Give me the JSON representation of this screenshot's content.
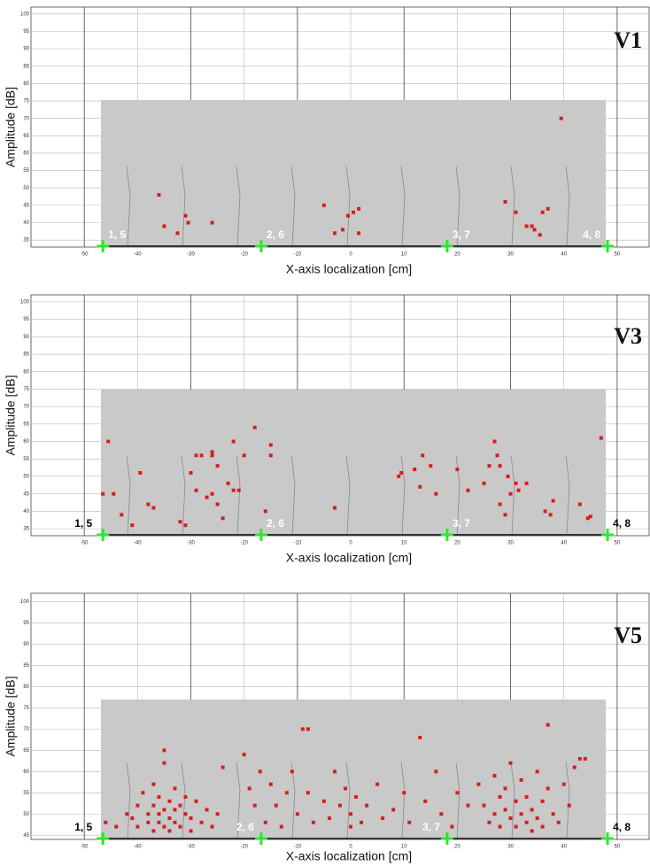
{
  "chart_data": [
    {
      "type": "scatter",
      "label": "V1",
      "xlabel": "X-axis localization [cm]",
      "ylabel": "Amplitude [dB]",
      "xlim": [
        -60,
        56
      ],
      "ylim": [
        33,
        102
      ],
      "xticks": [
        -50,
        -40,
        -30,
        -20,
        -10,
        0,
        10,
        20,
        30,
        40,
        50
      ],
      "yticks": [
        100,
        95,
        90,
        85,
        80,
        75,
        70,
        65,
        60,
        55,
        50,
        45,
        40,
        35
      ],
      "grid": true,
      "color": "#d41f1a",
      "x": [
        -36,
        -35,
        -32.5,
        -31,
        -30.5,
        -26,
        -5,
        -3,
        -1.5,
        -0.5,
        0.5,
        1.5,
        1.5,
        29,
        31,
        33,
        34,
        34.5,
        35.5,
        36,
        37,
        39.5
      ],
      "y": [
        48,
        39,
        37,
        42,
        40,
        40,
        45,
        37,
        38,
        42,
        43,
        44,
        37,
        46,
        43,
        39,
        39,
        38,
        36.5,
        43,
        44,
        70
      ],
      "sensors": {
        "x": [
          -46.5,
          -16.8,
          18.1,
          48.2
        ],
        "labels": [
          "1, 5",
          "2, 6",
          "3, 7",
          "4, 8"
        ],
        "color": "#2ee62e"
      }
    },
    {
      "type": "scatter",
      "label": "V3",
      "xlabel": "X-axis localization  [cm]",
      "ylabel": "Amplitude [dB]",
      "xlim": [
        -60,
        56
      ],
      "ylim": [
        33,
        102
      ],
      "xticks": [
        -50,
        -40,
        -30,
        -20,
        -10,
        0,
        10,
        20,
        30,
        40,
        50
      ],
      "yticks": [
        100,
        95,
        90,
        85,
        80,
        75,
        70,
        65,
        60,
        55,
        50,
        45,
        40,
        35
      ],
      "grid": true,
      "color": "#d41f1a",
      "x": [
        -45.5,
        -46.5,
        -44.5,
        -43,
        -41,
        -39.5,
        -38,
        -37,
        -32,
        -31,
        -30,
        -29,
        -28,
        -29,
        -27,
        -26,
        -26,
        -25,
        -26,
        -25,
        -24,
        -23,
        -22,
        -21,
        -22,
        -20,
        -18,
        -16,
        -15,
        -15,
        -3,
        9,
        9.5,
        12,
        13,
        13.5,
        15,
        16,
        20,
        22,
        25,
        26,
        27,
        27.5,
        28,
        28,
        29,
        29.5,
        30,
        31,
        31.5,
        33,
        36.5,
        37.5,
        38,
        43,
        44.5,
        45,
        47
      ],
      "y": [
        60,
        45,
        45,
        39,
        36,
        51,
        42,
        41,
        37,
        36,
        51,
        56,
        56,
        46,
        44,
        57,
        56,
        53,
        45,
        42,
        38,
        48,
        46,
        46,
        60,
        56,
        64,
        40,
        59,
        56,
        41,
        50,
        51,
        52,
        47,
        56,
        53,
        45,
        52,
        46,
        48,
        53,
        60,
        56,
        53,
        42,
        39,
        50,
        45,
        48,
        46,
        48,
        40,
        39,
        43,
        42,
        38,
        38.5,
        61
      ],
      "sensors": {
        "x": [
          -46.5,
          -16.8,
          18.1,
          48.2
        ],
        "labels": [
          "1, 5",
          "2, 6",
          "3, 7",
          "4, 8"
        ],
        "color": "#2ee62e"
      }
    },
    {
      "type": "scatter",
      "label": "V5",
      "xlabel": "X-axis localization  [cm]",
      "ylabel": "Amplitude [dB]",
      "xlim": [
        -60,
        56
      ],
      "ylim": [
        44,
        102
      ],
      "xticks": [
        -50,
        -40,
        -30,
        -20,
        -10,
        0,
        10,
        20,
        30,
        40,
        50
      ],
      "yticks": [
        100,
        95,
        90,
        85,
        80,
        75,
        70,
        65,
        60,
        55,
        50,
        45
      ],
      "grid": true,
      "color": "#d41f1a",
      "x": [
        -46,
        -44,
        -42,
        -41,
        -40,
        -40,
        -39,
        -38,
        -38,
        -37,
        -37,
        -37,
        -36,
        -36,
        -36,
        -35,
        -35,
        -35,
        -34,
        -34,
        -34,
        -33,
        -33,
        -33,
        -32,
        -32,
        -31,
        -31,
        -30,
        -30,
        -29,
        -28,
        -27,
        -26,
        -25,
        -24,
        -35,
        -20,
        -19,
        -18,
        -17,
        -16,
        -15,
        -14,
        -13,
        -12,
        -11,
        -10,
        -9,
        -8,
        -8,
        -7,
        -5,
        -4,
        -3,
        -2,
        -1,
        0,
        0,
        1,
        2,
        3,
        5,
        6,
        8,
        10,
        11,
        13,
        14,
        16,
        17,
        19,
        20,
        22,
        24,
        25,
        26,
        27,
        27,
        28,
        28,
        29,
        29,
        30,
        30,
        31,
        31,
        32,
        32,
        33,
        33,
        34,
        34,
        35,
        35,
        36,
        36,
        37,
        37,
        38,
        39,
        40,
        41,
        42,
        43,
        44
      ],
      "y": [
        48,
        47,
        50,
        49,
        52,
        47,
        55,
        50,
        48,
        57,
        52,
        46,
        54,
        50,
        48,
        62,
        51,
        47,
        53,
        49,
        46,
        56,
        51,
        48,
        52,
        47,
        54,
        50,
        49,
        46,
        53,
        48,
        51,
        47,
        50,
        61,
        65,
        64,
        56,
        52,
        60,
        48,
        57,
        52,
        47,
        55,
        60,
        50,
        70,
        70,
        55,
        48,
        53,
        49,
        60,
        52,
        56,
        50,
        47,
        54,
        48,
        52,
        57,
        49,
        51,
        55,
        48,
        68,
        53,
        60,
        50,
        47,
        55,
        52,
        57,
        52,
        48,
        59,
        50,
        54,
        47,
        51,
        56,
        49,
        62,
        53,
        47,
        50,
        58,
        48,
        54,
        51,
        46,
        60,
        49,
        53,
        47,
        71,
        56,
        50,
        48,
        57,
        52,
        61,
        63,
        63
      ],
      "sensors": {
        "x": [
          -46.5,
          -16.8,
          18.1,
          48.2
        ],
        "labels": [
          "1, 5",
          "2, 6",
          "3, 7",
          "4, 8"
        ],
        "color": "#2ee62e"
      }
    }
  ]
}
